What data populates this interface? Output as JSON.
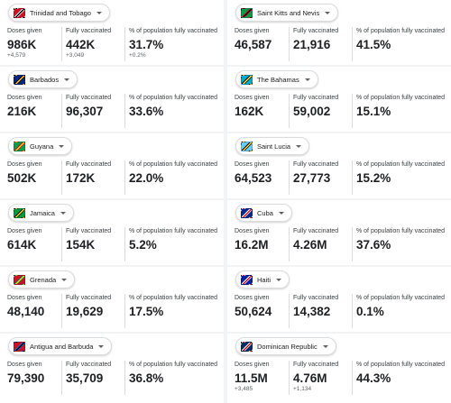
{
  "labels": {
    "doses": "Doses given",
    "fully": "Fully vaccinated",
    "percent": "% of population fully vaccinated"
  },
  "left": [
    {
      "country": "Trinidad and Tobago",
      "flag_colors": [
        "#ce1126",
        "#000000",
        "#ffffff"
      ],
      "doses": "986K",
      "doses_delta": "+4,579",
      "fully": "442K",
      "fully_delta": "+3,049",
      "percent": "31.7%",
      "percent_delta": "+0.2%"
    },
    {
      "country": "Barbados",
      "flag_colors": [
        "#00267f",
        "#ffc726",
        "#000000"
      ],
      "doses": "216K",
      "fully": "96,307",
      "percent": "33.6%"
    },
    {
      "country": "Guyana",
      "flag_colors": [
        "#009e49",
        "#fcd116",
        "#ce1126"
      ],
      "doses": "502K",
      "fully": "172K",
      "percent": "22.0%"
    },
    {
      "country": "Jamaica",
      "flag_colors": [
        "#009b3a",
        "#fed100",
        "#000000"
      ],
      "doses": "614K",
      "fully": "154K",
      "percent": "5.2%"
    },
    {
      "country": "Grenada",
      "flag_colors": [
        "#ce1126",
        "#fcd116",
        "#007a5e"
      ],
      "doses": "48,140",
      "fully": "19,629",
      "percent": "17.5%"
    },
    {
      "country": "Antigua and Barbuda",
      "flag_colors": [
        "#ce1126",
        "#000000",
        "#0072c6"
      ],
      "doses": "79,390",
      "fully": "35,709",
      "percent": "36.8%"
    }
  ],
  "right": [
    {
      "country": "Saint Kitts and Nevis",
      "flag_colors": [
        "#009e49",
        "#000000",
        "#ce1126"
      ],
      "doses": "46,587",
      "fully": "21,916",
      "percent": "41.5%"
    },
    {
      "country": "The Bahamas",
      "flag_colors": [
        "#00abc9",
        "#fae042",
        "#000000"
      ],
      "doses": "162K",
      "fully": "59,002",
      "percent": "15.1%"
    },
    {
      "country": "Saint Lucia",
      "flag_colors": [
        "#66ccff",
        "#fcd116",
        "#000000"
      ],
      "doses": "64,523",
      "fully": "27,773",
      "percent": "15.2%"
    },
    {
      "country": "Cuba",
      "flag_colors": [
        "#002a8f",
        "#cf142b",
        "#ffffff"
      ],
      "doses": "16.2M",
      "fully": "4.26M",
      "percent": "37.6%"
    },
    {
      "country": "Haiti",
      "flag_colors": [
        "#00209f",
        "#d21034",
        "#ffffff"
      ],
      "doses": "50,624",
      "fully": "14,382",
      "percent": "0.1%"
    },
    {
      "country": "Dominican Republic",
      "flag_colors": [
        "#002d62",
        "#ce1126",
        "#ffffff"
      ],
      "doses": "11.5M",
      "doses_delta": "+3,485",
      "fully": "4.76M",
      "fully_delta": "+1,134",
      "percent": "44.3%"
    }
  ]
}
